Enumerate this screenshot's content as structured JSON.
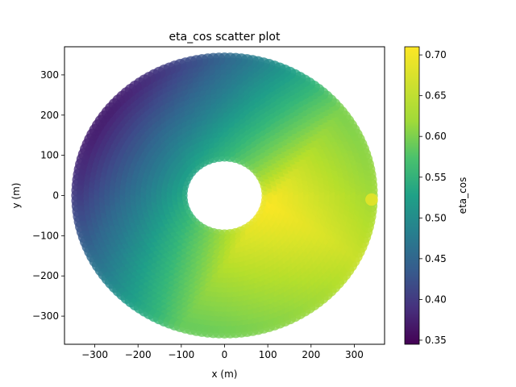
{
  "chart_data": {
    "type": "scatter",
    "title": "eta_cos scatter plot",
    "xlabel": "x (m)",
    "ylabel": "y (m)",
    "xlim": [
      -370,
      370
    ],
    "ylim": [
      -370,
      370
    ],
    "xticks": [
      -300,
      -200,
      -100,
      0,
      100,
      200,
      300
    ],
    "yticks": [
      -300,
      -200,
      -100,
      0,
      100,
      200,
      300
    ],
    "grid": false,
    "field": {
      "shape": "annulus",
      "inner_radius": 100,
      "outer_radius": 340,
      "ring_spacing": 12
    },
    "colorbar": {
      "label": "eta_cos",
      "colormap": "viridis",
      "range": [
        0.345,
        0.71
      ],
      "ticks": [
        0.35,
        0.4,
        0.45,
        0.5,
        0.55,
        0.6,
        0.65,
        0.7
      ],
      "tick_labels": [
        "0.35",
        "0.40",
        "0.45",
        "0.50",
        "0.55",
        "0.60",
        "0.65",
        "0.70"
      ]
    },
    "color_trend": {
      "min_value": 0.345,
      "min_location": [
        -300,
        250
      ],
      "max_value": 0.71,
      "max_location": [
        110,
        -20
      ],
      "edge_point": {
        "x": 340,
        "y": -10,
        "value": 0.7
      }
    }
  }
}
